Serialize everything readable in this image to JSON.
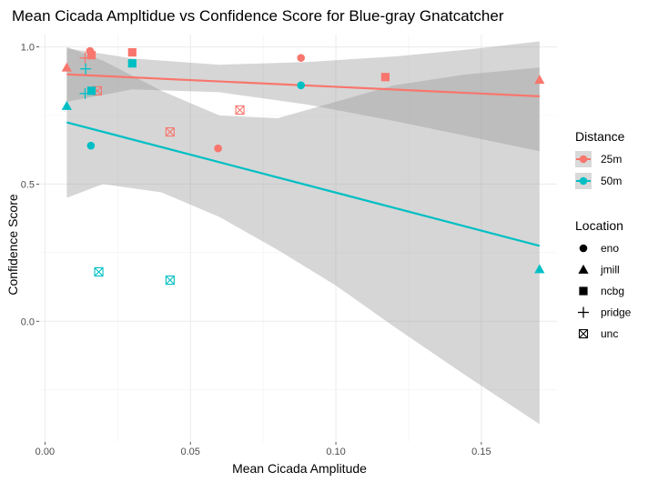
{
  "chart_data": {
    "type": "scatter",
    "title": "Mean Cicada Ampltidue vs Confidence Score for Blue-gray Gnatcatcher",
    "xlabel": "Mean Cicada Amplitude",
    "ylabel": "Confidence Score",
    "xlim": [
      -0.002,
      0.176
    ],
    "ylim": [
      -0.44,
      1.045
    ],
    "xticks": [
      {
        "value": 0.0,
        "label": "0.00"
      },
      {
        "value": 0.05,
        "label": "0.05"
      },
      {
        "value": 0.1,
        "label": "0.10"
      },
      {
        "value": 0.15,
        "label": "0.15"
      }
    ],
    "yticks": [
      {
        "value": 0.0,
        "label": "0.0"
      },
      {
        "value": 0.5,
        "label": "0.5"
      },
      {
        "value": 1.0,
        "label": "1.0"
      }
    ],
    "grid": true,
    "legend_position": "right",
    "legend_color": {
      "title": "Distance",
      "items": [
        {
          "label": "25m",
          "color": "#F8766D"
        },
        {
          "label": "50m",
          "color": "#00BFC4"
        }
      ]
    },
    "legend_shape": {
      "title": "Location",
      "items": [
        {
          "label": "eno",
          "shape": "circle"
        },
        {
          "label": "jmill",
          "shape": "triangle"
        },
        {
          "label": "ncbg",
          "shape": "square"
        },
        {
          "label": "pridge",
          "shape": "plus"
        },
        {
          "label": "unc",
          "shape": "boxcross"
        }
      ]
    },
    "series": [
      {
        "name": "25m",
        "color": "#F8766D",
        "points": [
          {
            "x": 0.0075,
            "y": 0.925,
            "shape": "triangle"
          },
          {
            "x": 0.0155,
            "y": 0.985,
            "shape": "circle"
          },
          {
            "x": 0.016,
            "y": 0.97,
            "shape": "square"
          },
          {
            "x": 0.0138,
            "y": 0.96,
            "shape": "plus"
          },
          {
            "x": 0.018,
            "y": 0.84,
            "shape": "boxcross"
          },
          {
            "x": 0.03,
            "y": 0.98,
            "shape": "square"
          },
          {
            "x": 0.043,
            "y": 0.69,
            "shape": "boxcross"
          },
          {
            "x": 0.0595,
            "y": 0.63,
            "shape": "circle"
          },
          {
            "x": 0.067,
            "y": 0.77,
            "shape": "boxcross"
          },
          {
            "x": 0.088,
            "y": 0.96,
            "shape": "circle"
          },
          {
            "x": 0.117,
            "y": 0.89,
            "shape": "square"
          },
          {
            "x": 0.17,
            "y": 0.88,
            "shape": "triangle"
          }
        ],
        "fit": {
          "x": [
            0.0075,
            0.17
          ],
          "y": [
            0.9,
            0.82
          ]
        },
        "band": {
          "x": [
            0.0075,
            0.03,
            0.06,
            0.09,
            0.12,
            0.145,
            0.17
          ],
          "lower": [
            0.8,
            0.845,
            0.835,
            0.79,
            0.73,
            0.675,
            0.62
          ],
          "upper": [
            0.995,
            0.958,
            0.935,
            0.945,
            0.965,
            0.99,
            1.02
          ]
        }
      },
      {
        "name": "50m",
        "color": "#00BFC4",
        "points": [
          {
            "x": 0.0075,
            "y": 0.785,
            "shape": "triangle"
          },
          {
            "x": 0.0158,
            "y": 0.64,
            "shape": "circle"
          },
          {
            "x": 0.016,
            "y": 0.84,
            "shape": "square"
          },
          {
            "x": 0.014,
            "y": 0.92,
            "shape": "plus"
          },
          {
            "x": 0.0138,
            "y": 0.83,
            "shape": "plus"
          },
          {
            "x": 0.0185,
            "y": 0.18,
            "shape": "boxcross"
          },
          {
            "x": 0.03,
            "y": 0.94,
            "shape": "square"
          },
          {
            "x": 0.043,
            "y": 0.15,
            "shape": "boxcross"
          },
          {
            "x": 0.088,
            "y": 0.86,
            "shape": "circle"
          },
          {
            "x": 0.17,
            "y": 0.19,
            "shape": "triangle"
          }
        ],
        "fit": {
          "x": [
            0.0075,
            0.17
          ],
          "y": [
            0.725,
            0.275
          ]
        },
        "band": {
          "x": [
            0.0075,
            0.02,
            0.04,
            0.06,
            0.08,
            0.1,
            0.12,
            0.145,
            0.17
          ],
          "lower": [
            0.45,
            0.5,
            0.47,
            0.38,
            0.26,
            0.13,
            -0.02,
            -0.2,
            -0.375
          ],
          "upper": [
            1.0,
            0.95,
            0.84,
            0.75,
            0.74,
            0.8,
            0.86,
            0.9,
            0.925
          ]
        }
      }
    ]
  }
}
